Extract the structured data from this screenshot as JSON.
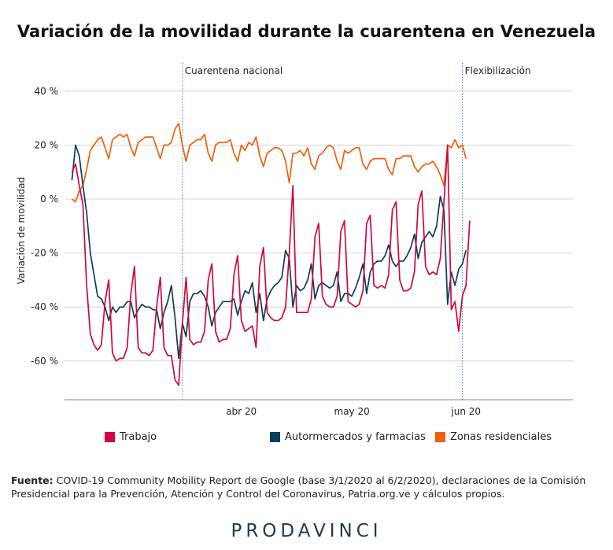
{
  "title": "Variación de la movilidad durante la cuarentena en Venezuela",
  "source_label": "Fuente:",
  "source_text": "COVID-19 Community Mobility Report de Google (base 3/1/2020 al 6/2/2020), declaraciones de la Comisión Presidencial para la Prevención, Atención y Control del Coronavirus, Patria.org.ve y cálculos propios.",
  "brand": "PRODAVINCI",
  "chart_data": {
    "type": "line",
    "title": "Variación de la movilidad durante la cuarentena en Venezuela",
    "xlabel": "",
    "ylabel": "Variación de movilidad",
    "ylim": [
      -75,
      50
    ],
    "y_ticks": [
      {
        "value": 40,
        "label": "40 %"
      },
      {
        "value": 20,
        "label": "20 %"
      },
      {
        "value": 0,
        "label": "0 %"
      },
      {
        "value": -20,
        "label": "-20 %"
      },
      {
        "value": -40,
        "label": "-40 %"
      },
      {
        "value": -60,
        "label": "-60 %"
      }
    ],
    "x_start": "2020-02-15",
    "x_range": [
      "2020-02-13",
      "2020-06-30"
    ],
    "x_ticks": [
      {
        "date": "2020-04-01",
        "label": "abr 20"
      },
      {
        "date": "2020-05-01",
        "label": "may 20"
      },
      {
        "date": "2020-06-01",
        "label": "jun 20"
      }
    ],
    "grid": true,
    "legend_position": "bottom",
    "annotations": [
      {
        "date": "2020-03-16",
        "label": "Cuarentena nacional"
      },
      {
        "date": "2020-05-31",
        "label": "Flexibilización"
      }
    ],
    "series": [
      {
        "name": "Trabajo",
        "color": "#d0073f",
        "values": [
          10,
          13,
          5,
          -2,
          -32,
          -50,
          -54,
          -56,
          -54,
          -38,
          -30,
          -57,
          -60,
          -59,
          -59,
          -55,
          -35,
          -25,
          -55,
          -57,
          -57,
          -58,
          -56,
          -40,
          -29,
          -55,
          -58,
          -58,
          -67,
          -69,
          -46,
          -29,
          -52,
          -54,
          -53,
          -53,
          -49,
          -30,
          -24,
          -49,
          -53,
          -52,
          -52,
          -48,
          -28,
          -21,
          -45,
          -49,
          -48,
          -47,
          -55,
          -25,
          -18,
          -42,
          -44,
          -45,
          -45,
          -44,
          -40,
          -20,
          5,
          -42,
          -42,
          -42,
          -42,
          -37,
          -14,
          -9,
          -36,
          -39,
          -40,
          -40,
          -36,
          -12,
          -8,
          -38,
          -39,
          -40,
          -39,
          -34,
          -9,
          -6,
          -32,
          -33,
          -32,
          -33,
          -28,
          -4,
          -1,
          -30,
          -34,
          -34,
          -33,
          -27,
          -2,
          3,
          -25,
          -28,
          -27,
          -28,
          -22,
          -1,
          20,
          -41,
          -38,
          -49,
          -36,
          -32,
          -8
        ]
      },
      {
        "name": "Autormercados y farmacias",
        "color": "#0e3d5c",
        "values": [
          7,
          20,
          16,
          5,
          -5,
          -20,
          -28,
          -36,
          -37,
          -40,
          -45,
          -40,
          -42,
          -40,
          -40,
          -38,
          -38,
          -44,
          -41,
          -39,
          -40,
          -40,
          -41,
          -41,
          -48,
          -42,
          -38,
          -32,
          -44,
          -59,
          -46,
          -51,
          -38,
          -35,
          -35,
          -34,
          -36,
          -40,
          -47,
          -42,
          -40,
          -38,
          -38,
          -38,
          -37,
          -43,
          -38,
          -34,
          -35,
          -31,
          -42,
          -35,
          -45,
          -37,
          -34,
          -32,
          -31,
          -29,
          -19,
          -22,
          -40,
          -32,
          -34,
          -33,
          -30,
          -24,
          -37,
          -32,
          -31,
          -32,
          -33,
          -32,
          -27,
          -38,
          -35,
          -35,
          -36,
          -33,
          -29,
          -24,
          -35,
          -27,
          -24,
          -23,
          -23,
          -21,
          -17,
          -23,
          -25,
          -23,
          -23,
          -21,
          -18,
          -13,
          -22,
          -16,
          -14,
          -12,
          -14,
          -10,
          1,
          -4,
          -39,
          -27,
          -32,
          -26,
          -24,
          -19
        ]
      },
      {
        "name": "Zonas residenciales",
        "color": "#f0600a",
        "values": [
          0,
          -1,
          3,
          5,
          11,
          18,
          20,
          22,
          23,
          19,
          15,
          22,
          23,
          24,
          23,
          24,
          19,
          16,
          21,
          22,
          23,
          23,
          23,
          19,
          15,
          20,
          20,
          21,
          26,
          28,
          20,
          14,
          20,
          21,
          22,
          22,
          24,
          17,
          14,
          20,
          21,
          21,
          21,
          22,
          17,
          14,
          20,
          18,
          21,
          20,
          23,
          16,
          12,
          17,
          18,
          19,
          19,
          18,
          14,
          6,
          17,
          17,
          18,
          16,
          19,
          13,
          11,
          16,
          17,
          19,
          20,
          19,
          14,
          11,
          18,
          17,
          18,
          19,
          19,
          13,
          11,
          14,
          15,
          15,
          15,
          15,
          11,
          9,
          15,
          15,
          16,
          16,
          16,
          12,
          10,
          12,
          13,
          13,
          14,
          12,
          9,
          5,
          20,
          19,
          22,
          19,
          20,
          15
        ]
      }
    ]
  }
}
